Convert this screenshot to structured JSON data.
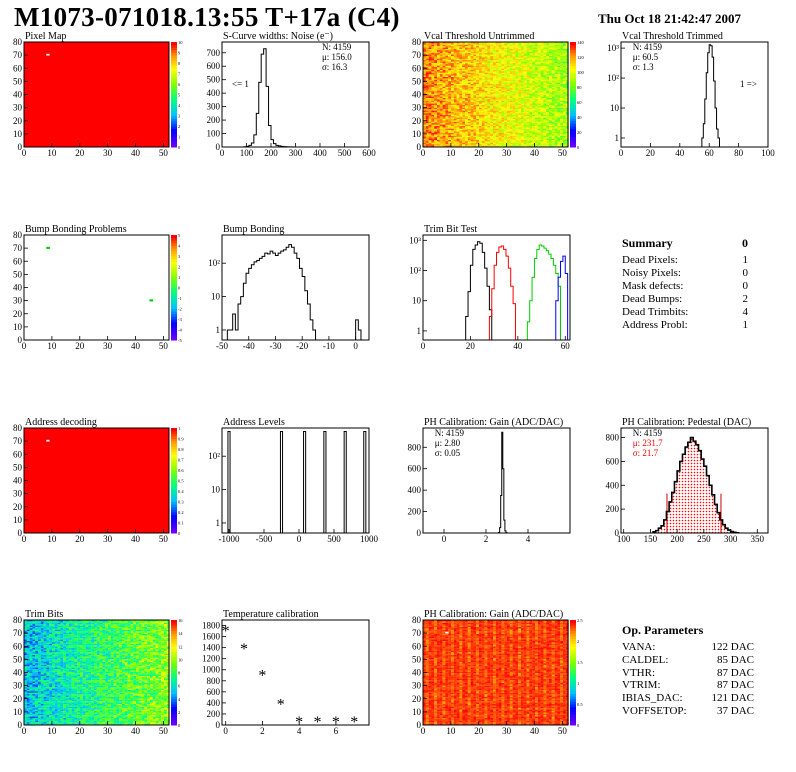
{
  "header": {
    "title": "M1073-071018.13:55 T+17a (C4)",
    "date": "Thu Oct 18 21:42:47 2007"
  },
  "summary": {
    "title": "Summary",
    "total": "0",
    "rows": [
      {
        "label": "Dead Pixels:",
        "value": "1"
      },
      {
        "label": "Noisy Pixels:",
        "value": "0"
      },
      {
        "label": "Mask defects:",
        "value": "0"
      },
      {
        "label": "Dead Bumps:",
        "value": "2"
      },
      {
        "label": "Dead Trimbits:",
        "value": "4"
      },
      {
        "label": "Address Probl:",
        "value": "1"
      }
    ]
  },
  "op_params": {
    "title": "Op. Parameters",
    "rows": [
      {
        "label": "VANA:",
        "value": "122 DAC"
      },
      {
        "label": "CALDEL:",
        "value": "85 DAC"
      },
      {
        "label": "VTHR:",
        "value": "87 DAC"
      },
      {
        "label": "VTRIM:",
        "value": "87 DAC"
      },
      {
        "label": "IBIAS_DAC:",
        "value": "121 DAC"
      },
      {
        "label": "VOFFSETOP:",
        "value": "37 DAC"
      }
    ]
  },
  "chart_data": [
    {
      "id": "pixel-map",
      "type": "heatmap",
      "title": "Pixel Map",
      "xlim": [
        0,
        52
      ],
      "ylim": [
        0,
        80
      ],
      "xticks": [
        "0",
        "10",
        "20",
        "30",
        "40",
        "50"
      ],
      "yticks": [
        "0",
        "10",
        "20",
        "30",
        "40",
        "50",
        "60",
        "70",
        "80"
      ],
      "base": 10,
      "zlim": [
        0,
        10
      ],
      "zticks": [
        "0",
        "1",
        "2",
        "3",
        "4",
        "5",
        "6",
        "7",
        "8",
        "9",
        "10"
      ],
      "outliers": [
        {
          "x": 8,
          "y": 70,
          "color": "#ffffff"
        }
      ]
    },
    {
      "id": "scurve-widths",
      "type": "histogram",
      "title": "S-Curve widths: Noise (e⁻)",
      "xlim": [
        0,
        600
      ],
      "ylim": [
        0,
        780
      ],
      "xticks": [
        "0",
        "100",
        "200",
        "300",
        "400",
        "500",
        "600"
      ],
      "yticks": [
        "0",
        "100",
        "200",
        "300",
        "400",
        "500",
        "600",
        "700"
      ],
      "stats": {
        "entries": "N: 4159",
        "mean": "μ: 156.0",
        "sigma": "σ: 16.3"
      },
      "underflow_label": "<= 1",
      "bins_x": [
        90,
        100,
        110,
        120,
        130,
        140,
        150,
        160,
        170,
        180,
        190,
        200,
        210,
        220,
        230,
        240,
        250,
        260,
        270,
        280,
        290,
        300
      ],
      "bins_y": [
        2,
        5,
        12,
        30,
        90,
        250,
        480,
        690,
        730,
        450,
        160,
        55,
        25,
        12,
        8,
        5,
        3,
        2,
        1,
        1,
        0
      ]
    },
    {
      "id": "vcal-untrimmed",
      "type": "heatmap",
      "title": "Vcal Threshold Untrimmed",
      "xlim": [
        0,
        52
      ],
      "ylim": [
        0,
        80
      ],
      "xticks": [
        "0",
        "10",
        "20",
        "30",
        "40",
        "50"
      ],
      "yticks": [
        "0",
        "10",
        "20",
        "30",
        "40",
        "50",
        "60",
        "70",
        "80"
      ],
      "zlim": [
        0,
        140
      ],
      "zticks": [
        "0",
        "20",
        "40",
        "60",
        "80",
        "100",
        "120",
        "140"
      ],
      "center": 118,
      "gradient_x": 0.55
    },
    {
      "id": "vcal-trimmed",
      "type": "histogram",
      "title": "Vcal Threshold Trimmed",
      "log": true,
      "xlim": [
        0,
        100
      ],
      "ylim": [
        0.5,
        1600
      ],
      "xticks": [
        "0",
        "20",
        "40",
        "60",
        "80",
        "100"
      ],
      "yticks": [
        "1",
        "10",
        "10²",
        "10³"
      ],
      "stats": {
        "entries": "N: 4159",
        "mean": "μ: 60.5",
        "sigma": "σ:  1.3"
      },
      "overflow_label": "1 =>",
      "bins_x": [
        55,
        56,
        57,
        58,
        59,
        60,
        61,
        62,
        63,
        64,
        65,
        66,
        67
      ],
      "bins_y": [
        1,
        3,
        20,
        150,
        700,
        1300,
        1200,
        500,
        80,
        10,
        2,
        1
      ]
    },
    {
      "id": "bump-bonding-problems",
      "type": "heatmap",
      "title": "Bump Bonding Problems",
      "xlim": [
        0,
        52
      ],
      "ylim": [
        0,
        80
      ],
      "xticks": [
        "0",
        "10",
        "20",
        "30",
        "40",
        "50"
      ],
      "yticks": [
        "0",
        "10",
        "20",
        "30",
        "40",
        "50",
        "60",
        "70",
        "80"
      ],
      "zlim": [
        -5,
        5
      ],
      "zticks": [
        "-5",
        "-4",
        "-3",
        "-2",
        "-1",
        "0",
        "1",
        "2",
        "3",
        "4",
        "5"
      ],
      "base": null,
      "points": [
        {
          "x": 8,
          "y": 70
        },
        {
          "x": 45,
          "y": 30
        }
      ]
    },
    {
      "id": "bump-bonding",
      "type": "histogram",
      "title": "Bump Bonding",
      "log": true,
      "xlim": [
        -50,
        5
      ],
      "ylim": [
        0.5,
        700
      ],
      "xticks": [
        "-50",
        "-40",
        "-30",
        "-20",
        "-10",
        "0"
      ],
      "yticks": [
        "1",
        "10",
        "10²"
      ],
      "bins_x": [
        -48,
        -47,
        -46,
        -45,
        -44,
        -43,
        -42,
        -41,
        -40,
        -39,
        -38,
        -37,
        -36,
        -35,
        -34,
        -33,
        -32,
        -31,
        -30,
        -29,
        -28,
        -27,
        -26,
        -25,
        -24,
        -23,
        -22,
        -21,
        -20,
        -19,
        -18,
        -17,
        -16,
        -15,
        -14,
        -13,
        -12,
        -11,
        -10,
        -9,
        -8,
        -7,
        -6,
        -5,
        -4,
        -3,
        -2,
        -1,
        0,
        1,
        2
      ],
      "bins_y": [
        1,
        1,
        3,
        1,
        6,
        10,
        25,
        50,
        70,
        90,
        110,
        120,
        140,
        160,
        200,
        190,
        230,
        200,
        170,
        200,
        230,
        250,
        300,
        360,
        300,
        200,
        140,
        70,
        40,
        15,
        6,
        2,
        1,
        0,
        0,
        0,
        0,
        0,
        0,
        0,
        0,
        0,
        0,
        0,
        0,
        0,
        0,
        0,
        2,
        1
      ]
    },
    {
      "id": "trim-bit-test",
      "type": "histogram",
      "title": "Trim Bit Test",
      "log": true,
      "xlim": [
        0,
        62
      ],
      "ylim": [
        0.5,
        1500
      ],
      "xticks": [
        "0",
        "20",
        "40",
        "60"
      ],
      "yticks": [
        "1",
        "10",
        "10²",
        "10³"
      ],
      "series": [
        {
          "color": "#000000",
          "bins_x": [
            18,
            19,
            20,
            21,
            22,
            23,
            24,
            25,
            26,
            27,
            28,
            29
          ],
          "bins_y": [
            3,
            20,
            150,
            500,
            700,
            900,
            800,
            400,
            120,
            30,
            5
          ]
        },
        {
          "color": "#ff0000",
          "bins_x": [
            28,
            29,
            30,
            31,
            32,
            33,
            34,
            35,
            36,
            37,
            38,
            39
          ],
          "bins_y": [
            3,
            25,
            150,
            400,
            600,
            650,
            500,
            300,
            120,
            30,
            8
          ]
        },
        {
          "color": "#00cc00",
          "bins_x": [
            44,
            45,
            46,
            47,
            48,
            49,
            50,
            51,
            52,
            53,
            54,
            55,
            56,
            57,
            58
          ],
          "bins_y": [
            2,
            10,
            60,
            250,
            500,
            700,
            650,
            550,
            450,
            350,
            250,
            150,
            80,
            30
          ]
        },
        {
          "color": "#0000ff",
          "bins_x": [
            56,
            57,
            58,
            59,
            60,
            61
          ],
          "bins_y": [
            10,
            60,
            200,
            300,
            80
          ]
        }
      ]
    },
    {
      "id": "address-decoding",
      "type": "heatmap",
      "title": "Address decoding",
      "xlim": [
        0,
        52
      ],
      "ylim": [
        0,
        80
      ],
      "xticks": [
        "0",
        "10",
        "20",
        "30",
        "40",
        "50"
      ],
      "yticks": [
        "0",
        "10",
        "20",
        "30",
        "40",
        "50",
        "60",
        "70",
        "80"
      ],
      "base": 1,
      "zlim": [
        0,
        1
      ],
      "zticks": [
        "0",
        "0.1",
        "0.2",
        "0.3",
        "0.4",
        "0.5",
        "0.6",
        "0.7",
        "0.8",
        "0.9",
        "1"
      ],
      "outliers": [
        {
          "x": 8,
          "y": 70,
          "color": "#ffffff"
        }
      ]
    },
    {
      "id": "address-levels",
      "type": "histogram",
      "title": "Address Levels",
      "log": true,
      "xlim": [
        -1100,
        1000
      ],
      "ylim": [
        0.5,
        700
      ],
      "xticks": [
        "-1000",
        "-500",
        "0",
        "500",
        "1000"
      ],
      "yticks": [
        "1",
        "10",
        "10²"
      ],
      "peaks": [
        {
          "x": -1000,
          "y": 550,
          "w": 30
        },
        {
          "x": -250,
          "y": 550,
          "w": 30
        },
        {
          "x": 80,
          "y": 550,
          "w": 30
        },
        {
          "x": 370,
          "y": 550,
          "w": 30
        },
        {
          "x": 660,
          "y": 550,
          "w": 30
        },
        {
          "x": 940,
          "y": 550,
          "w": 30
        }
      ]
    },
    {
      "id": "ph-gain",
      "type": "histogram",
      "title": "PH Calibration: Gain (ADC/DAC)",
      "xlim": [
        -1,
        6
      ],
      "ylim": [
        0,
        980
      ],
      "xticks": [
        "0",
        "2",
        "4"
      ],
      "yticks": [
        "0",
        "200",
        "400",
        "600",
        "800"
      ],
      "stats": {
        "entries": "N: 4159",
        "mean": "μ: 2.80",
        "sigma": "σ: 0.05"
      },
      "bins_x": [
        2.6,
        2.65,
        2.7,
        2.75,
        2.8,
        2.85,
        2.9,
        2.95,
        3.0
      ],
      "bins_y": [
        5,
        50,
        350,
        940,
        600,
        120,
        20,
        3
      ]
    },
    {
      "id": "ph-pedestal",
      "type": "histogram",
      "title": "PH Calibration: Pedestal (DAC)",
      "xlim": [
        95,
        370
      ],
      "ylim": [
        0,
        880
      ],
      "xticks": [
        "100",
        "150",
        "200",
        "250",
        "300",
        "350"
      ],
      "yticks": [
        "0",
        "200",
        "400",
        "600",
        "800"
      ],
      "stats": {
        "entries": "N: 4159",
        "mean": "μ: 231.7",
        "sigma": "σ: 21.7"
      },
      "fit_lines": [
        181,
        282
      ],
      "bins_x": [
        155,
        160,
        165,
        170,
        175,
        180,
        185,
        190,
        195,
        200,
        205,
        210,
        215,
        220,
        225,
        230,
        235,
        240,
        245,
        250,
        255,
        260,
        265,
        270,
        275,
        280,
        285,
        290,
        295,
        300,
        305,
        310,
        315
      ],
      "bins_y": [
        10,
        20,
        40,
        60,
        110,
        180,
        260,
        340,
        430,
        520,
        600,
        660,
        720,
        760,
        800,
        770,
        740,
        690,
        620,
        560,
        480,
        400,
        320,
        240,
        170,
        110,
        70,
        40,
        25,
        12,
        6,
        2
      ]
    },
    {
      "id": "trim-bits",
      "type": "heatmap",
      "title": "Trim Bits",
      "xlim": [
        0,
        52
      ],
      "ylim": [
        0,
        80
      ],
      "xticks": [
        "0",
        "10",
        "20",
        "30",
        "40",
        "50"
      ],
      "yticks": [
        "0",
        "10",
        "20",
        "30",
        "40",
        "50",
        "60",
        "70",
        "80"
      ],
      "zlim": [
        0,
        16
      ],
      "zticks": [
        "0",
        "2",
        "4",
        "6",
        "8",
        "10",
        "12",
        "14",
        "16"
      ],
      "center": 9,
      "gradient_x": 0.15
    },
    {
      "id": "temperature-calibration",
      "type": "scatter",
      "title": "Temperature calibration",
      "xlim": [
        -0.2,
        7.8
      ],
      "ylim": [
        0,
        1900
      ],
      "xticks": [
        "0",
        "2",
        "4",
        "6"
      ],
      "yticks": [
        "0",
        "200",
        "400",
        "600",
        "800",
        "1000",
        "1200",
        "1400",
        "1600",
        "1800"
      ],
      "points": [
        {
          "x": 0,
          "y": 1680
        },
        {
          "x": 1,
          "y": 1360
        },
        {
          "x": 2,
          "y": 880
        },
        {
          "x": 3,
          "y": 350
        },
        {
          "x": 4,
          "y": 40
        },
        {
          "x": 5,
          "y": 40
        },
        {
          "x": 6,
          "y": 40
        },
        {
          "x": 7,
          "y": 40
        }
      ]
    },
    {
      "id": "ph-gain-map",
      "type": "heatmap",
      "title": "PH Calibration: Gain (ADC/DAC)",
      "xlim": [
        0,
        52
      ],
      "ylim": [
        0,
        80
      ],
      "xticks": [
        "0",
        "10",
        "20",
        "30",
        "40",
        "50"
      ],
      "yticks": [
        "0",
        "10",
        "20",
        "30",
        "40",
        "50",
        "60",
        "70",
        "80"
      ],
      "zlim": [
        0,
        2.8
      ],
      "zticks": [
        "0",
        "0.5",
        "1",
        "1.5",
        "2",
        "2.5"
      ],
      "center": 2.8,
      "columnar": true,
      "outliers": [
        {
          "x": 8,
          "y": 70,
          "color": "#ffffff"
        }
      ]
    }
  ]
}
